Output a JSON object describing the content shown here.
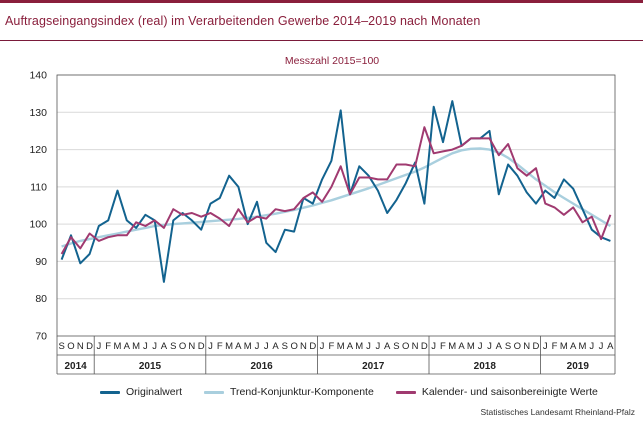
{
  "page": {
    "title": "Auftragseingangsindex (real) im Verarbeitenden Gewerbe 2014–2019 nach Monaten",
    "accent_color": "#8a1f3c",
    "source": "Statistisches Landesamt  Rheinland-Pfalz"
  },
  "chart_data": {
    "type": "line",
    "subtitle": "Messzahl 2015=100",
    "ylim": [
      70,
      140
    ],
    "yticks": [
      70,
      80,
      90,
      100,
      110,
      120,
      130,
      140
    ],
    "grid": true,
    "legend_position": "bottom",
    "month_labels": [
      "S",
      "O",
      "N",
      "D",
      "J",
      "F",
      "M",
      "A",
      "M",
      "J",
      "J",
      "A",
      "S",
      "O",
      "N",
      "D",
      "J",
      "F",
      "M",
      "A",
      "M",
      "J",
      "J",
      "A",
      "S",
      "O",
      "N",
      "D",
      "J",
      "F",
      "M",
      "A",
      "M",
      "J",
      "J",
      "A",
      "S",
      "O",
      "N",
      "D",
      "J",
      "F",
      "M",
      "A",
      "M",
      "J",
      "J",
      "A",
      "S",
      "O",
      "N",
      "D",
      "J",
      "F",
      "M",
      "A",
      "M",
      "J",
      "J",
      "A"
    ],
    "year_groups": [
      {
        "label": "2014",
        "start": 0,
        "count": 4
      },
      {
        "label": "2015",
        "start": 4,
        "count": 12
      },
      {
        "label": "2016",
        "start": 16,
        "count": 12
      },
      {
        "label": "2017",
        "start": 28,
        "count": 12
      },
      {
        "label": "2018",
        "start": 40,
        "count": 12
      },
      {
        "label": "2019",
        "start": 52,
        "count": 8
      }
    ],
    "series": [
      {
        "name": "Originalwert",
        "color": "#13638f",
        "values": [
          90.5,
          97,
          89.5,
          92,
          99.5,
          101,
          109,
          101,
          99,
          102.5,
          101,
          84.5,
          101,
          103,
          101,
          98.5,
          105.5,
          107,
          113,
          110,
          100,
          106,
          95,
          92.5,
          98.5,
          98,
          107,
          105.5,
          112,
          117,
          130.5,
          108,
          115.5,
          113,
          109,
          103,
          106.5,
          111,
          116.5,
          105.5,
          131.5,
          122,
          133,
          121,
          123,
          123,
          125,
          108,
          116,
          113,
          108.5,
          105.5,
          109,
          107,
          112,
          109.5,
          104,
          98.5,
          96.5,
          95.5
        ]
      },
      {
        "name": "Trend-Konjunktur-Komponente",
        "color": "#a9cfde",
        "values": [
          94,
          94.8,
          95.5,
          96,
          96.5,
          97,
          97.5,
          98,
          98.5,
          99,
          99.5,
          99.8,
          100,
          100.2,
          100.4,
          100.6,
          100.8,
          101,
          101.2,
          101.4,
          101.7,
          102,
          102.4,
          102.8,
          103.3,
          103.8,
          104.4,
          105,
          105.7,
          106.4,
          107.2,
          108,
          108.8,
          109.6,
          110.5,
          111.4,
          112.3,
          113.2,
          114.1,
          115.2,
          116.5,
          117.8,
          119,
          119.8,
          120.2,
          120.3,
          120,
          119.2,
          117.8,
          116,
          114,
          112,
          110.3,
          108.6,
          107,
          105.5,
          104,
          102.5,
          101,
          99.5
        ]
      },
      {
        "name": "Kalender- und saisonbereinigte Werte",
        "color": "#a03a70",
        "values": [
          92,
          96.5,
          93.5,
          97.5,
          95.5,
          96.5,
          97,
          97,
          100.5,
          99.5,
          101,
          99,
          104,
          102.5,
          103,
          102,
          103,
          101.5,
          99.5,
          104,
          100.5,
          102,
          101.5,
          104,
          103.5,
          104,
          107,
          108.5,
          106,
          110,
          115.5,
          108,
          112.5,
          112.5,
          112,
          112,
          116,
          116,
          115.5,
          126,
          119,
          119.5,
          120,
          121,
          123,
          123,
          123,
          118.5,
          121.5,
          115,
          113,
          115,
          105.5,
          104.5,
          102.5,
          104.5,
          100.5,
          102,
          96,
          102.5
        ]
      }
    ]
  }
}
